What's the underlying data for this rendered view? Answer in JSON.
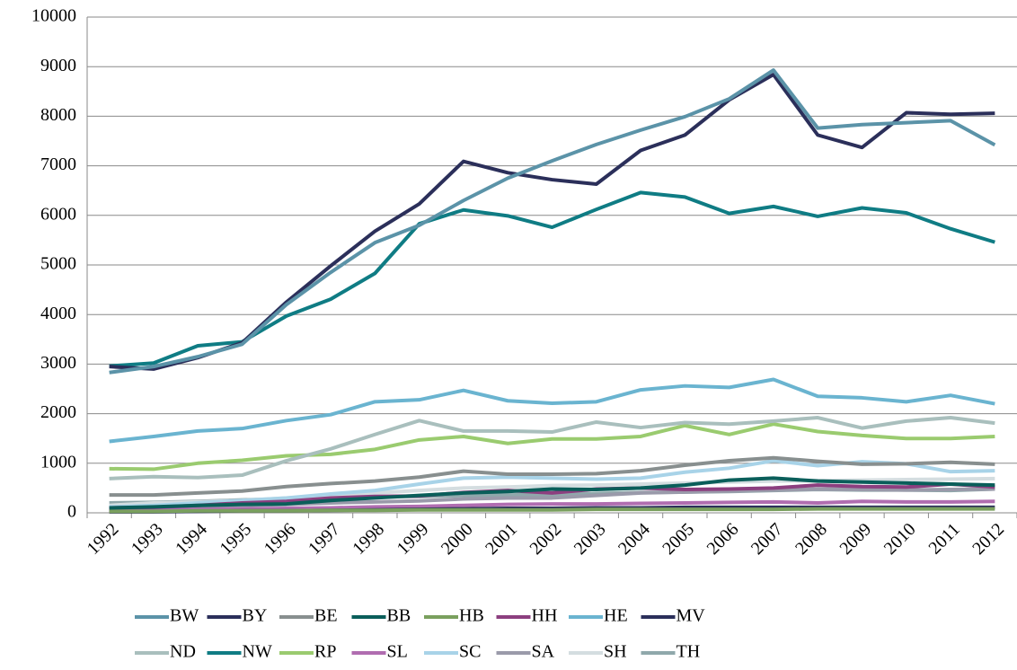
{
  "chart_data": {
    "type": "line",
    "categories": [
      "1992",
      "1993",
      "1994",
      "1995",
      "1996",
      "1997",
      "1998",
      "1999",
      "2000",
      "2001",
      "2002",
      "2003",
      "2004",
      "2005",
      "2006",
      "2007",
      "2008",
      "2009",
      "2010",
      "2011",
      "2012"
    ],
    "ylim": [
      0,
      10000
    ],
    "yticks": [
      0,
      1000,
      2000,
      3000,
      4000,
      5000,
      6000,
      7000,
      8000,
      9000,
      10000
    ],
    "grid": true,
    "legend": "bottom",
    "series": [
      {
        "name": "BW",
        "color": "#5b93a8",
        "values": [
          2830,
          2950,
          3150,
          3400,
          4200,
          4850,
          5450,
          5800,
          6300,
          6750,
          7100,
          7430,
          7720,
          7990,
          8350,
          8930,
          7760,
          7830,
          7870,
          7910,
          7420
        ]
      },
      {
        "name": "BY",
        "color": "#2b2f5a",
        "values": [
          2950,
          2900,
          3130,
          3430,
          4250,
          4980,
          5680,
          6230,
          7090,
          6860,
          6720,
          6630,
          7310,
          7620,
          8330,
          8840,
          7620,
          7370,
          8070,
          8040,
          8060
        ]
      },
      {
        "name": "BE",
        "color": "#888f8f",
        "values": [
          360,
          360,
          400,
          440,
          530,
          590,
          640,
          720,
          840,
          780,
          780,
          790,
          850,
          960,
          1050,
          1110,
          1040,
          980,
          990,
          1020,
          980
        ]
      },
      {
        "name": "BB",
        "color": "#0a5e5a",
        "values": [
          100,
          120,
          150,
          170,
          180,
          250,
          300,
          350,
          400,
          430,
          480,
          470,
          500,
          560,
          660,
          700,
          640,
          620,
          600,
          580,
          560
        ]
      },
      {
        "name": "HB",
        "color": "#7aa05e",
        "values": [
          30,
          30,
          40,
          40,
          40,
          50,
          50,
          60,
          60,
          60,
          60,
          70,
          70,
          70,
          70,
          70,
          80,
          80,
          80,
          80,
          80
        ]
      },
      {
        "name": "HH",
        "color": "#8c3f7f",
        "values": [
          100,
          110,
          150,
          200,
          230,
          300,
          330,
          340,
          410,
          450,
          400,
          480,
          500,
          470,
          480,
          500,
          560,
          530,
          520,
          580,
          520
        ]
      },
      {
        "name": "HE",
        "color": "#6ab4d0",
        "values": [
          1440,
          1540,
          1650,
          1700,
          1860,
          1980,
          2240,
          2280,
          2470,
          2260,
          2210,
          2240,
          2480,
          2560,
          2530,
          2690,
          2350,
          2320,
          2240,
          2370,
          2200
        ]
      },
      {
        "name": "MV",
        "color": "#2b2f5a",
        "values": [
          20,
          20,
          30,
          40,
          40,
          50,
          60,
          70,
          80,
          90,
          90,
          100,
          100,
          110,
          110,
          110,
          110,
          110,
          110,
          110,
          110
        ]
      },
      {
        "name": "ND",
        "color": "#a9bfbd",
        "values": [
          690,
          730,
          710,
          760,
          1050,
          1290,
          1580,
          1860,
          1650,
          1650,
          1630,
          1830,
          1720,
          1820,
          1790,
          1850,
          1920,
          1710,
          1850,
          1920,
          1810
        ]
      },
      {
        "name": "NW",
        "color": "#0f7c84",
        "values": [
          2960,
          3020,
          3370,
          3450,
          3970,
          4310,
          4830,
          5830,
          6110,
          5990,
          5760,
          6120,
          6460,
          6370,
          6040,
          6180,
          5980,
          6150,
          6050,
          5730,
          5460
        ]
      },
      {
        "name": "RP",
        "color": "#9acb6f",
        "values": [
          890,
          880,
          1000,
          1060,
          1150,
          1180,
          1280,
          1470,
          1540,
          1400,
          1490,
          1490,
          1540,
          1760,
          1580,
          1790,
          1640,
          1560,
          1500,
          1500,
          1540
        ]
      },
      {
        "name": "SL",
        "color": "#b06db0",
        "values": [
          50,
          60,
          70,
          80,
          90,
          100,
          120,
          130,
          150,
          170,
          180,
          180,
          190,
          200,
          210,
          220,
          200,
          230,
          220,
          220,
          230
        ]
      },
      {
        "name": "SC",
        "color": "#a8d3e8",
        "values": [
          120,
          150,
          200,
          250,
          300,
          380,
          450,
          580,
          700,
          720,
          700,
          680,
          700,
          820,
          900,
          1050,
          950,
          1030,
          990,
          830,
          850
        ]
      },
      {
        "name": "SA",
        "color": "#9a9aaa",
        "values": [
          80,
          100,
          130,
          150,
          170,
          200,
          220,
          240,
          280,
          300,
          300,
          350,
          400,
          420,
          440,
          460,
          480,
          470,
          460,
          470,
          480
        ]
      },
      {
        "name": "SH",
        "color": "#d4dde0",
        "values": [
          150,
          200,
          220,
          250,
          300,
          350,
          400,
          450,
          500,
          520,
          550,
          560,
          580,
          600,
          620,
          640,
          650,
          660,
          670,
          680,
          690
        ]
      },
      {
        "name": "TH",
        "color": "#8fa8ab",
        "values": [
          200,
          210,
          230,
          260,
          280,
          300,
          320,
          330,
          350,
          360,
          370,
          390,
          410,
          420,
          430,
          450,
          470,
          460,
          460,
          450,
          480
        ]
      }
    ]
  }
}
